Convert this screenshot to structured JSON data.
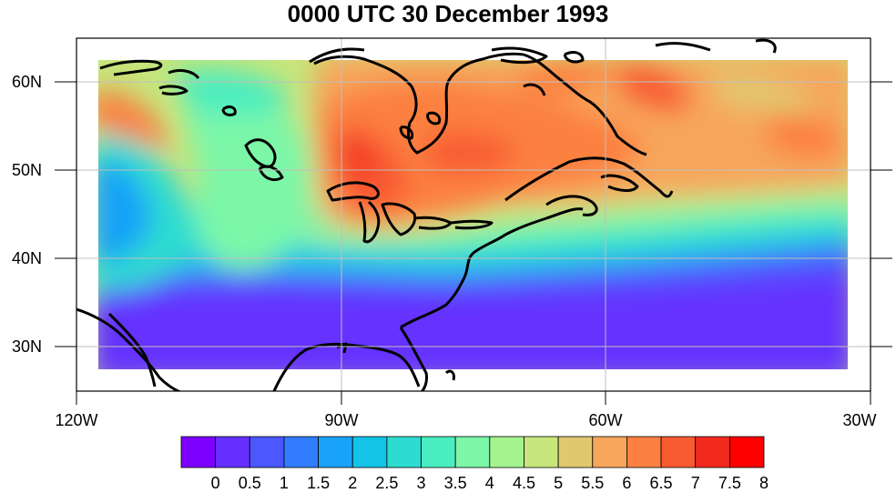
{
  "title": "0000 UTC 30 December 1993",
  "axes": {
    "lat_labels": [
      {
        "text": "60N",
        "value": 60
      },
      {
        "text": "50N",
        "value": 50
      },
      {
        "text": "40N",
        "value": 40
      },
      {
        "text": "30N",
        "value": 30
      }
    ],
    "lon_labels": [
      {
        "text": "120W",
        "value": -120
      },
      {
        "text": "90W",
        "value": -90
      },
      {
        "text": "60W",
        "value": -60
      },
      {
        "text": "30W",
        "value": -30
      }
    ],
    "lat_range": [
      25,
      65
    ],
    "lon_range": [
      -120,
      -30
    ]
  },
  "colorbar": {
    "labels": [
      "0",
      "0.5",
      "1",
      "1.5",
      "2",
      "2.5",
      "3",
      "3.5",
      "4",
      "4.5",
      "5",
      "5.5",
      "6",
      "6.5",
      "7",
      "7.5",
      "8"
    ],
    "colors": [
      "#7e00ff",
      "#6530ff",
      "#4b58ff",
      "#327dff",
      "#18a2f8",
      "#14c4e8",
      "#2ddbd0",
      "#4aedc0",
      "#7cf7a8",
      "#a5f38f",
      "#c6e57b",
      "#e1c870",
      "#f7a65c",
      "#fc8040",
      "#f85a32",
      "#f22a1e",
      "#ff0000"
    ]
  },
  "field": {
    "extent_lon": [
      -117.5,
      -32.5
    ],
    "extent_lat": [
      27.5,
      62.5
    ],
    "description_level_min": 0,
    "description_level_max": 8
  }
}
